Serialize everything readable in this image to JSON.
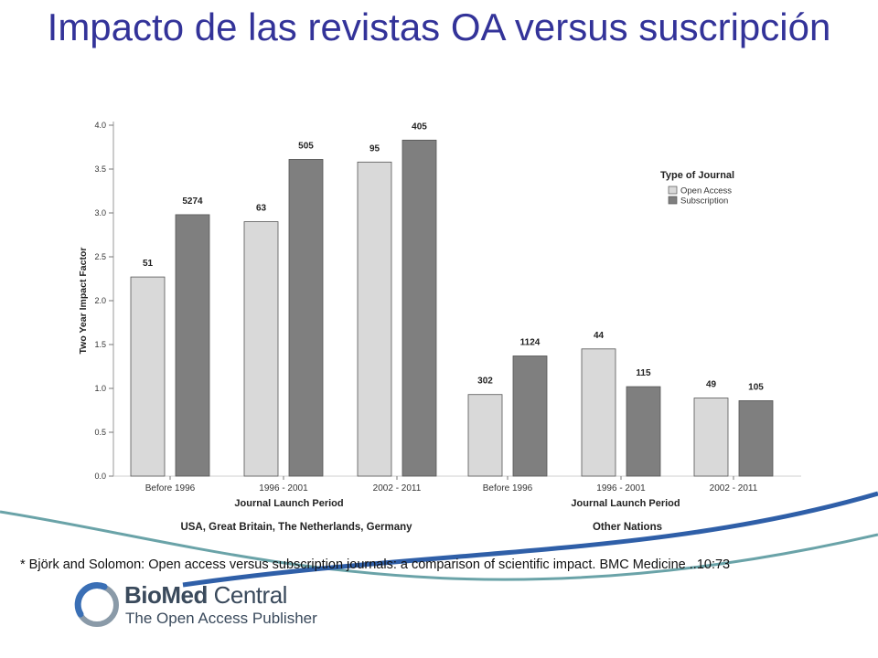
{
  "slide": {
    "title": "Impacto de las revistas OA versus suscripción",
    "citation": "* Björk and Solomon: Open access versus subscription journals: a comparison of scientific impact. BMC Medicine ..10:73"
  },
  "logo": {
    "name_bold": "BioMed",
    "name_light": " Central",
    "tagline": "The Open Access Publisher",
    "colors": {
      "text": "#3a4a5c",
      "ring_blue": "#3a6fb5",
      "ring_grey": "#8a9aa8"
    }
  },
  "colors": {
    "title": "#333399",
    "open_access": "#d9d9d9",
    "subscription": "#7f7f7f",
    "swoosh_blue": "#2f5fa8",
    "swoosh_teal": "#6aa3a8"
  },
  "chart_data": {
    "type": "bar",
    "ylabel": "Two Year Impact Factor",
    "ylim": [
      0,
      4
    ],
    "yticks": [
      "0.0",
      "0.5",
      "1.0",
      "1.5",
      "2.0",
      "2.5",
      "3.0",
      "3.5",
      "4.0"
    ],
    "legend": {
      "title": "Type of Journal",
      "position": "top-right",
      "entries": [
        "Open Access",
        "Subscription"
      ]
    },
    "panels": [
      {
        "xlabel": "Journal Launch Period",
        "region": "USA, Great Britain, The Netherlands, Germany",
        "categories": [
          "Before 1996",
          "1996 - 2001",
          "2002 - 2011"
        ],
        "series": [
          {
            "name": "Open Access",
            "values": [
              2.27,
              2.9,
              3.58
            ],
            "labels": [
              "51",
              "63",
              "95"
            ]
          },
          {
            "name": "Subscription",
            "values": [
              2.98,
              3.61,
              3.83
            ],
            "labels": [
              "5274",
              "505",
              "405"
            ]
          }
        ]
      },
      {
        "xlabel": "Journal Launch Period",
        "region": "Other Nations",
        "categories": [
          "Before 1996",
          "1996 - 2001",
          "2002 - 2011"
        ],
        "series": [
          {
            "name": "Open Access",
            "values": [
              0.93,
              1.45,
              0.89
            ],
            "labels": [
              "302",
              "44",
              "49"
            ]
          },
          {
            "name": "Subscription",
            "values": [
              1.37,
              1.02,
              0.86
            ],
            "labels": [
              "1124",
              "115",
              "105"
            ]
          }
        ]
      }
    ]
  }
}
